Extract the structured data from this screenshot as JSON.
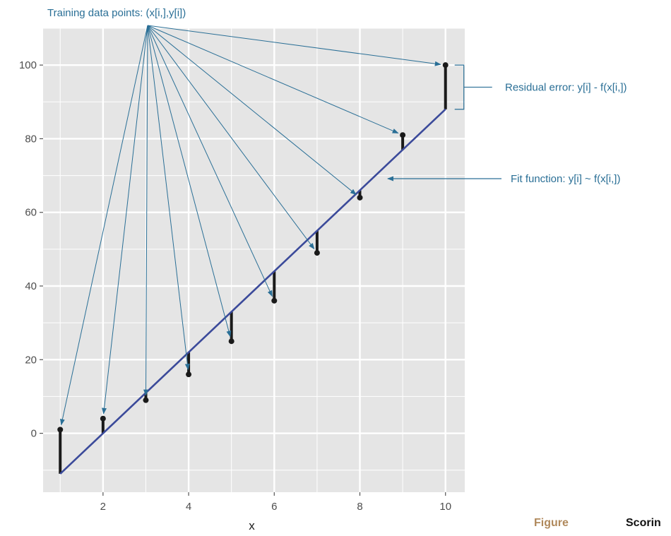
{
  "chart_data": {
    "type": "scatter",
    "title": "",
    "xlabel": "x",
    "ylabel": "",
    "xlim": [
      0.6,
      10.45
    ],
    "ylim": [
      -16,
      110
    ],
    "x_ticks": [
      2,
      4,
      6,
      8,
      10
    ],
    "y_ticks": [
      0,
      20,
      40,
      60,
      80,
      100
    ],
    "grid": true,
    "points": [
      {
        "x": 1,
        "y": 1
      },
      {
        "x": 2,
        "y": 4
      },
      {
        "x": 3,
        "y": 9
      },
      {
        "x": 4,
        "y": 16
      },
      {
        "x": 5,
        "y": 25
      },
      {
        "x": 6,
        "y": 36
      },
      {
        "x": 7,
        "y": 49
      },
      {
        "x": 8,
        "y": 64
      },
      {
        "x": 9,
        "y": 81
      },
      {
        "x": 10,
        "y": 100
      }
    ],
    "fit": {
      "slope": 11,
      "intercept": -22
    },
    "colors": {
      "panel": "#e5e5e5",
      "grid": "#ffffff",
      "fit": "#3b4a9a",
      "points": "#1a1a1a",
      "annotation": "#2a6f96"
    },
    "annotations": {
      "training_points": "Training data points: (x[i,],y[i])",
      "residual_error": "Residual error: y[i] - f(x[i,])",
      "fit_function": "Fit function: y[i] ~ f(x[i,])"
    }
  },
  "caption": {
    "figure_label": "Figure",
    "caption_text": "Scorin"
  }
}
